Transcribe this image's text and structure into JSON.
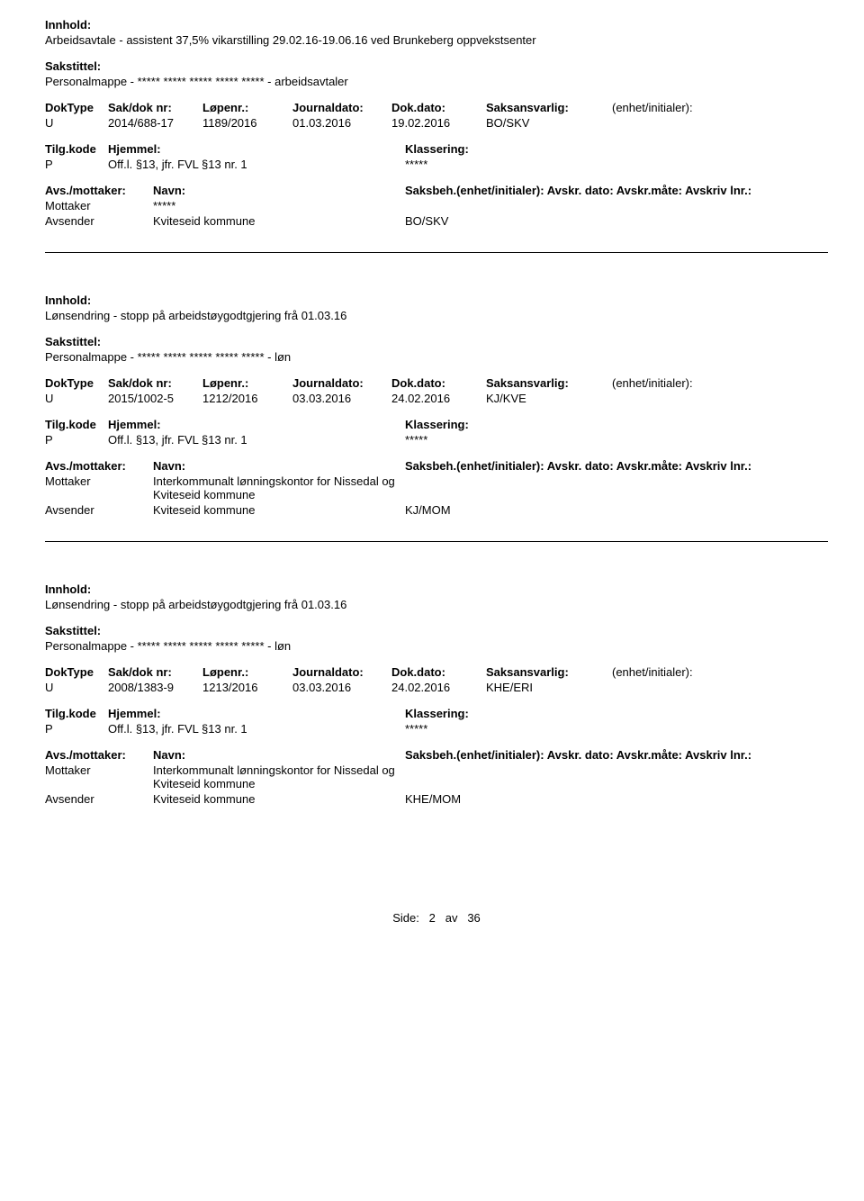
{
  "labels": {
    "innhold": "Innhold:",
    "sakstittel": "Sakstittel:",
    "doktype": "DokType",
    "sakdok": "Sak/dok nr:",
    "lopenr": "Løpenr.:",
    "journaldato": "Journaldato:",
    "dokdato": "Dok.dato:",
    "saksansvarlig": "Saksansvarlig:",
    "enhet": "(enhet/initialer):",
    "tilgkode": "Tilg.kode",
    "hjemmel": "Hjemmel:",
    "klassering": "Klassering:",
    "avsmottaker": "Avs./mottaker:",
    "navn": "Navn:",
    "saksbeh_line": "Saksbeh.(enhet/initialer): Avskr. dato:  Avskr.måte: Avskriv lnr.:"
  },
  "records": [
    {
      "innhold": "Arbeidsavtale - assistent 37,5% vikarstilling 29.02.16-19.06.16 ved Brunkeberg oppvekstsenter",
      "sakstittel": "Personalmappe - ***** ***** ***** ***** ***** - arbeidsavtaler",
      "doktype": "U",
      "sakdok": "2014/688-17",
      "lopenr": "1189/2016",
      "journaldato": "01.03.2016",
      "dokdato": "19.02.2016",
      "saksansvarlig": "BO/SKV",
      "tilgkode": "P",
      "hjemmel": "Off.l. §13, jfr. FVL §13 nr. 1",
      "klassering": "*****",
      "parties": [
        {
          "role": "Mottaker",
          "name": "*****",
          "code": ""
        },
        {
          "role": "Avsender",
          "name": "Kviteseid kommune",
          "code": "BO/SKV"
        }
      ]
    },
    {
      "innhold": "Lønsendring - stopp på arbeidstøygodtgjering frå 01.03.16",
      "sakstittel": "Personalmappe - ***** ***** ***** ***** ***** - løn",
      "doktype": "U",
      "sakdok": "2015/1002-5",
      "lopenr": "1212/2016",
      "journaldato": "03.03.2016",
      "dokdato": "24.02.2016",
      "saksansvarlig": "KJ/KVE",
      "tilgkode": "P",
      "hjemmel": "Off.l. §13, jfr. FVL §13 nr. 1",
      "klassering": "*****",
      "parties": [
        {
          "role": "Mottaker",
          "name": "Interkommunalt lønningskontor for Nissedal og Kviteseid kommune",
          "code": ""
        },
        {
          "role": "Avsender",
          "name": "Kviteseid kommune",
          "code": "KJ/MOM"
        }
      ]
    },
    {
      "innhold": "Lønsendring - stopp på arbeidstøygodtgjering frå 01.03.16",
      "sakstittel": "Personalmappe -  ***** ***** ***** ***** *****  - løn",
      "doktype": "U",
      "sakdok": "2008/1383-9",
      "lopenr": "1213/2016",
      "journaldato": "03.03.2016",
      "dokdato": "24.02.2016",
      "saksansvarlig": "KHE/ERI",
      "tilgkode": "P",
      "hjemmel": "Off.l. §13, jfr. FVL §13 nr. 1",
      "klassering": "*****",
      "parties": [
        {
          "role": "Mottaker",
          "name": "Interkommunalt lønningskontor for Nissedal og Kviteseid kommune",
          "code": ""
        },
        {
          "role": "Avsender",
          "name": "Kviteseid kommune",
          "code": "KHE/MOM"
        }
      ]
    }
  ],
  "footer": {
    "side": "Side:",
    "page": "2",
    "av": "av",
    "total": "36"
  }
}
